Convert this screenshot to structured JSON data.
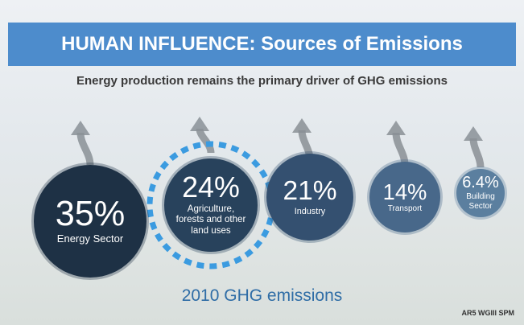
{
  "chart_data": {
    "type": "bubble",
    "title": "HUMAN INFLUENCE: Sources of Emissions",
    "subtitle": "Energy production remains the primary driver of GHG emissions",
    "categories": [
      "Energy Sector",
      "Agriculture, forests and other land uses",
      "Industry",
      "Transport",
      "Building Sector"
    ],
    "values": [
      35,
      24,
      21,
      14,
      6.4
    ],
    "value_labels": [
      "35%",
      "24%",
      "21%",
      "14%",
      "6.4%"
    ],
    "colors": [
      "#1e3145",
      "#28425c",
      "#345070",
      "#48688a",
      "#5b7f9f"
    ],
    "caption": "2010 GHG emissions",
    "source": "AR5 WGIII SPM"
  }
}
